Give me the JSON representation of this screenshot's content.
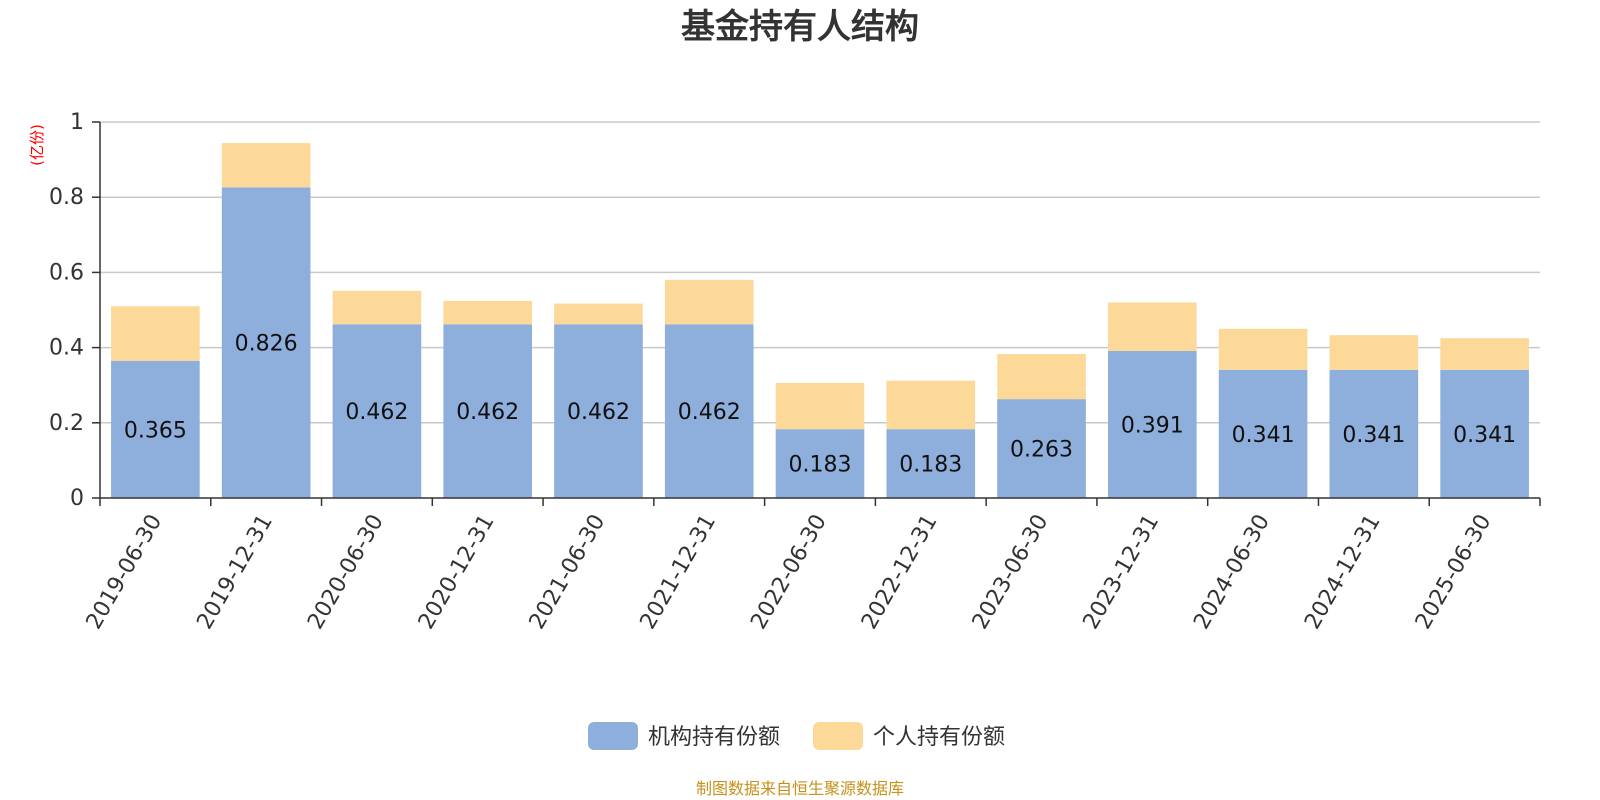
{
  "chart_data": {
    "type": "bar",
    "stacked": true,
    "title": "基金持有人结构",
    "unit_label": "(亿份)",
    "ylim": [
      0,
      1
    ],
    "yticks": [
      "0",
      "0.2",
      "0.4",
      "0.6",
      "0.8",
      "1"
    ],
    "ytick_values": [
      0,
      0.2,
      0.4,
      0.6,
      0.8,
      1
    ],
    "grid": true,
    "legend_position": "bottom-center",
    "categories": [
      "2019-06-30",
      "2019-12-31",
      "2020-06-30",
      "2020-12-31",
      "2021-06-30",
      "2021-12-31",
      "2022-06-30",
      "2022-12-31",
      "2023-06-30",
      "2023-12-31",
      "2024-06-30",
      "2024-12-31",
      "2025-06-30"
    ],
    "series": [
      {
        "name": "机构持有份额",
        "color": "#8eaedc",
        "values": [
          0.365,
          0.826,
          0.462,
          0.462,
          0.462,
          0.462,
          0.183,
          0.183,
          0.263,
          0.391,
          0.341,
          0.341,
          0.341
        ],
        "data_labels": [
          "0.365",
          "0.826",
          "0.462",
          "0.462",
          "0.462",
          "0.462",
          "0.183",
          "0.183",
          "0.263",
          "0.391",
          "0.341",
          "0.341",
          "0.341"
        ]
      },
      {
        "name": "个人持有份额",
        "color": "#fdd999",
        "values": [
          0.145,
          0.118,
          0.089,
          0.062,
          0.055,
          0.118,
          0.123,
          0.129,
          0.12,
          0.129,
          0.109,
          0.092,
          0.084
        ]
      }
    ],
    "source_note": "制图数据来自恒生聚源数据库"
  }
}
